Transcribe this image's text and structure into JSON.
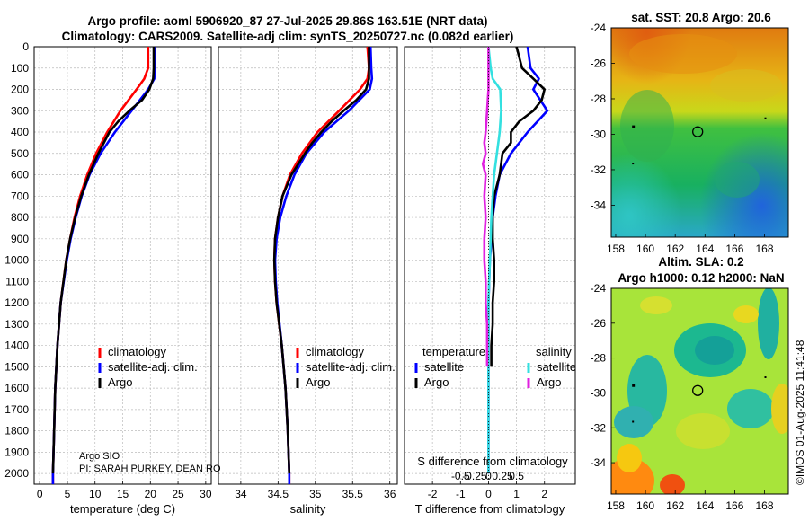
{
  "header": {
    "line1": "Argo profile: aoml 5906920_87 27-Jul-2025 29.86S 163.51E (NRT data)",
    "line2": "Climatology: CARS2009. Satellite-adj clim: synTS_20250727.nc (0.082d earlier)"
  },
  "footer_credit": {
    "line1": "Argo SIO",
    "line2": "PI: SARAH PURKEY, DEAN RO"
  },
  "watermark": "©IMOS 01-Aug-2025 11:41:48",
  "colors": {
    "climatology": "#ff0000",
    "satellite": "#0000ff",
    "argo": "#000000",
    "sat_salinity": "#33e0e0",
    "argo_salinity": "#e020e0"
  },
  "chart_data": [
    {
      "id": "temperature",
      "type": "line",
      "xlabel": "temperature (deg C)",
      "ylabel": "",
      "xlim": [
        -1,
        31
      ],
      "ylim": [
        2050,
        0
      ],
      "xticks": [
        "0",
        "5",
        "10",
        "15",
        "20",
        "25",
        "30"
      ],
      "xtick_values": [
        0,
        5,
        10,
        15,
        20,
        25,
        30
      ],
      "yticks": [
        "0",
        "100",
        "200",
        "300",
        "400",
        "500",
        "600",
        "700",
        "800",
        "900",
        "1000",
        "1100",
        "1200",
        "1300",
        "1400",
        "1500",
        "1600",
        "1700",
        "1800",
        "1900",
        "2000"
      ],
      "ytick_values": [
        0,
        100,
        200,
        300,
        400,
        500,
        600,
        700,
        800,
        900,
        1000,
        1100,
        1200,
        1300,
        1400,
        1500,
        1600,
        1700,
        1800,
        1900,
        2000
      ],
      "legend": [
        "climatology",
        "satellite-adj. clim.",
        "Argo"
      ],
      "legend_position": "bottom-right",
      "series": [
        {
          "name": "climatology",
          "color": "#ff0000",
          "depth": [
            0,
            100,
            150,
            200,
            300,
            400,
            500,
            600,
            700,
            800,
            900,
            1000,
            1200,
            1400,
            1600,
            1800,
            2000,
            2050
          ],
          "values": [
            19.6,
            19.6,
            18.9,
            17.5,
            14.6,
            12.2,
            10.2,
            8.6,
            7.3,
            6.3,
            5.5,
            4.8,
            3.8,
            3.2,
            2.8,
            2.6,
            2.4,
            2.4
          ]
        },
        {
          "name": "satellite-adj. clim.",
          "color": "#0000ff",
          "depth": [
            0,
            100,
            150,
            200,
            300,
            400,
            500,
            600,
            700,
            800,
            900,
            1000,
            1200,
            1400,
            1600,
            1800,
            2000,
            2050
          ],
          "values": [
            20.8,
            20.8,
            20.7,
            19.6,
            16.6,
            13.6,
            11.0,
            9.0,
            7.6,
            6.5,
            5.6,
            4.9,
            3.8,
            3.2,
            2.8,
            2.6,
            2.4,
            2.4
          ]
        },
        {
          "name": "Argo",
          "color": "#000000",
          "depth": [
            0,
            50,
            100,
            150,
            200,
            250,
            300,
            350,
            400,
            450,
            500,
            600,
            700,
            800,
            900,
            1000,
            1200,
            1400,
            1600,
            1800,
            2000
          ],
          "values": [
            20.6,
            20.6,
            20.6,
            20.5,
            19.8,
            18.5,
            16.2,
            14.2,
            12.6,
            11.6,
            10.6,
            8.9,
            7.5,
            6.4,
            5.5,
            4.8,
            3.8,
            3.2,
            2.8,
            2.6,
            2.4
          ]
        }
      ]
    },
    {
      "id": "salinity",
      "type": "line",
      "xlabel": "salinity",
      "ylabel": "",
      "xlim": [
        33.7,
        36.1
      ],
      "ylim": [
        2050,
        0
      ],
      "xticks": [
        "34",
        "34.5",
        "35",
        "35.5",
        "36"
      ],
      "xtick_values": [
        34,
        34.5,
        35,
        35.5,
        36
      ],
      "legend": [
        "climatology",
        "satellite-adj. clim.",
        "Argo"
      ],
      "legend_position": "bottom-right",
      "series": [
        {
          "name": "climatology",
          "color": "#ff0000",
          "depth": [
            0,
            100,
            150,
            200,
            300,
            400,
            500,
            600,
            700,
            800,
            900,
            1000,
            1100,
            1200,
            1400,
            1600,
            1800,
            2000,
            2050
          ],
          "values": [
            35.7,
            35.72,
            35.7,
            35.6,
            35.32,
            35.03,
            34.82,
            34.66,
            34.56,
            34.5,
            34.46,
            34.45,
            34.46,
            34.48,
            34.55,
            34.6,
            34.63,
            34.65,
            34.65
          ]
        },
        {
          "name": "satellite-adj. clim.",
          "color": "#0000ff",
          "depth": [
            0,
            100,
            150,
            200,
            300,
            400,
            500,
            600,
            700,
            800,
            900,
            1000,
            1100,
            1200,
            1400,
            1600,
            1800,
            2000,
            2050
          ],
          "values": [
            35.74,
            35.75,
            35.76,
            35.73,
            35.45,
            35.12,
            34.88,
            34.72,
            34.61,
            34.53,
            34.48,
            34.46,
            34.47,
            34.49,
            34.55,
            34.6,
            34.63,
            34.65,
            34.65
          ]
        },
        {
          "name": "Argo",
          "color": "#000000",
          "depth": [
            0,
            100,
            150,
            200,
            250,
            300,
            350,
            400,
            450,
            500,
            600,
            700,
            800,
            900,
            1000,
            1100,
            1200,
            1400,
            1600,
            1800,
            2000
          ],
          "values": [
            35.72,
            35.72,
            35.72,
            35.68,
            35.55,
            35.38,
            35.22,
            35.08,
            34.96,
            34.86,
            34.68,
            34.56,
            34.5,
            34.46,
            34.45,
            34.46,
            34.48,
            34.55,
            34.6,
            34.63,
            34.65
          ]
        }
      ]
    },
    {
      "id": "difference",
      "type": "line",
      "xlabel": "T difference from climatology",
      "secondary_label": "S difference from climatology",
      "xlim": [
        -3,
        3.1
      ],
      "ylim": [
        2050,
        0
      ],
      "xticks": [
        "-2",
        "-1",
        "0",
        "1",
        "2"
      ],
      "xtick_values": [
        -2,
        -1,
        0,
        1,
        2
      ],
      "secondary_ticks": [
        "-0.5",
        "-0.25",
        "0",
        "0.25",
        "0.5"
      ],
      "legend_groups": [
        {
          "title": "temperature",
          "items": [
            "satellite",
            "Argo"
          ]
        },
        {
          "title": "salinity",
          "items": [
            "satellite",
            "Argo"
          ]
        }
      ],
      "legend_position": "bottom",
      "series": [
        {
          "name": "temperature satellite",
          "color": "#0000ff",
          "depth": [
            0,
            100,
            150,
            200,
            300,
            400,
            500,
            600,
            700,
            800,
            900,
            1000,
            1200,
            1500,
            1800,
            2000
          ],
          "values": [
            1.4,
            1.5,
            1.8,
            1.6,
            2.1,
            1.4,
            0.8,
            0.4,
            0.25,
            0.15,
            0.1,
            0.05,
            0.0,
            0.0,
            0.0,
            0.0
          ]
        },
        {
          "name": "temperature Argo",
          "color": "#000000",
          "depth": [
            0,
            50,
            100,
            150,
            200,
            250,
            300,
            350,
            400,
            450,
            500,
            600,
            700,
            800,
            900,
            1000,
            1100,
            1200,
            1300,
            1400,
            1500
          ],
          "values": [
            1.0,
            1.1,
            1.2,
            1.6,
            2.0,
            1.9,
            1.6,
            1.1,
            0.8,
            0.8,
            0.5,
            0.4,
            0.2,
            0.15,
            0.15,
            0.2,
            0.2,
            0.15,
            0.15,
            0.1,
            0.1
          ]
        },
        {
          "name": "salinity satellite",
          "color": "#33e0e0",
          "depth": [
            0,
            100,
            150,
            200,
            300,
            400,
            500,
            600,
            800,
            1000,
            1200,
            1500,
            1800,
            2000
          ],
          "values": [
            0.0,
            0.08,
            0.15,
            0.42,
            0.45,
            0.4,
            0.3,
            0.2,
            0.1,
            0.05,
            0.0,
            0.0,
            0.0,
            0.0
          ]
        },
        {
          "name": "salinity Argo",
          "color": "#e020e0",
          "depth": [
            0,
            100,
            200,
            300,
            400,
            450,
            500,
            550,
            600,
            700,
            800,
            900,
            1000,
            1100,
            1200,
            1300,
            1400,
            1500
          ],
          "values": [
            0.0,
            0.0,
            0.0,
            -0.05,
            -0.1,
            -0.15,
            -0.1,
            -0.2,
            -0.1,
            -0.15,
            -0.1,
            -0.15,
            -0.15,
            -0.1,
            -0.1,
            -0.05,
            -0.05,
            -0.05
          ]
        }
      ]
    },
    {
      "id": "sst_map",
      "type": "heatmap",
      "title": "sat. SST: 20.8 Argo: 20.6",
      "xticks": [
        "158",
        "160",
        "162",
        "164",
        "166",
        "168"
      ],
      "xtick_values": [
        158,
        160,
        162,
        164,
        166,
        168
      ],
      "yticks": [
        "-24",
        "-26",
        "-28",
        "-30",
        "-32",
        "-34"
      ],
      "ytick_values": [
        -24,
        -26,
        -28,
        -30,
        -32,
        -34
      ],
      "xlim": [
        157.7,
        169.6
      ],
      "ylim": [
        -24,
        -35.8
      ],
      "float_position": [
        163.51,
        -29.86
      ]
    },
    {
      "id": "sla_map",
      "type": "heatmap",
      "title_line1": "Altim. SLA: 0.2",
      "title_line2": "Argo h1000: 0.12 h2000: NaN",
      "xticks": [
        "158",
        "160",
        "162",
        "164",
        "166",
        "168"
      ],
      "xtick_values": [
        158,
        160,
        162,
        164,
        166,
        168
      ],
      "yticks": [
        "-24",
        "-26",
        "-28",
        "-30",
        "-32",
        "-34"
      ],
      "ytick_values": [
        -24,
        -26,
        -28,
        -30,
        -32,
        -34
      ],
      "xlim": [
        157.7,
        169.6
      ],
      "ylim": [
        -24,
        -35.8
      ],
      "float_position": [
        163.51,
        -29.86
      ]
    }
  ]
}
